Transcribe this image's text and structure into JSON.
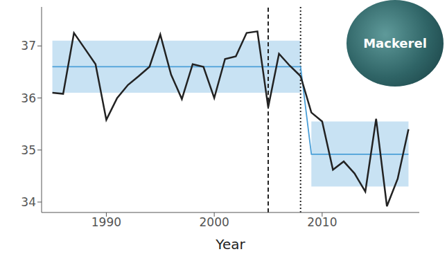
{
  "chart_data": {
    "type": "line",
    "x_label": "Year",
    "annotation": "Mackerel",
    "x": [
      1985,
      1986,
      1987,
      1988,
      1989,
      1990,
      1991,
      1992,
      1993,
      1994,
      1995,
      1996,
      1997,
      1998,
      1999,
      2000,
      2001,
      2002,
      2003,
      2004,
      2005,
      2006,
      2007,
      2008,
      2009,
      2010,
      2011,
      2012,
      2013,
      2014,
      2015,
      2016,
      2017,
      2018
    ],
    "values": [
      36.1,
      36.08,
      37.25,
      36.95,
      36.65,
      35.58,
      36.0,
      36.25,
      36.42,
      36.6,
      37.22,
      36.45,
      35.98,
      36.65,
      36.6,
      36.0,
      36.75,
      36.8,
      37.25,
      37.28,
      35.82,
      36.85,
      36.62,
      36.42,
      35.72,
      35.55,
      34.62,
      34.78,
      34.55,
      34.2,
      35.6,
      33.92,
      34.45,
      35.4
    ],
    "color": "#222222",
    "xlim": [
      1984,
      2019
    ],
    "xticks": [
      1990,
      2000,
      2010
    ],
    "ylim": [
      33.8,
      37.75
    ],
    "yticks": [
      34,
      35,
      36,
      37
    ],
    "grid": false,
    "segments": [
      {
        "x": [
          1985,
          2008
        ],
        "mean": 36.6,
        "lower": 36.1,
        "upper": 37.1
      },
      {
        "x": [
          2009,
          2018
        ],
        "mean": 34.92,
        "lower": 34.3,
        "upper": 35.55
      }
    ],
    "segment_color": "#4a9fd8",
    "vlines": [
      {
        "x": 2005,
        "line_style": "dashed"
      },
      {
        "x": 2008,
        "line_style": "dotted"
      }
    ]
  }
}
